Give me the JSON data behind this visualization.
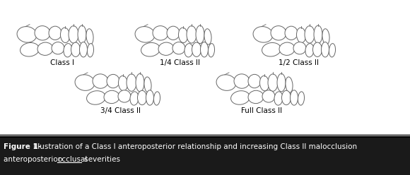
{
  "title_bold": "Figure 1-",
  "title_normal": " Illustration of a Class I anteroposterior relationship and increasing Class II malocclusion",
  "title_line2_pre": "anteroposterior occlusal severities",
  "title_line2_underline": "occlusal",
  "title_line2_post": " severities",
  "title_line2_prefix": "anteroposterior ",
  "labels": [
    "Class I",
    "1/4 Class II",
    "1/2 Class II",
    "3/4 Class II",
    "Full Class II"
  ],
  "background_color": "#ffffff",
  "caption_bg": "#1a1a1a",
  "caption_text_color": "#ffffff",
  "tooth_color": "#ffffff",
  "tooth_edge": "#666666",
  "fig_width": 5.8,
  "fig_height": 2.48,
  "dpi": 100
}
